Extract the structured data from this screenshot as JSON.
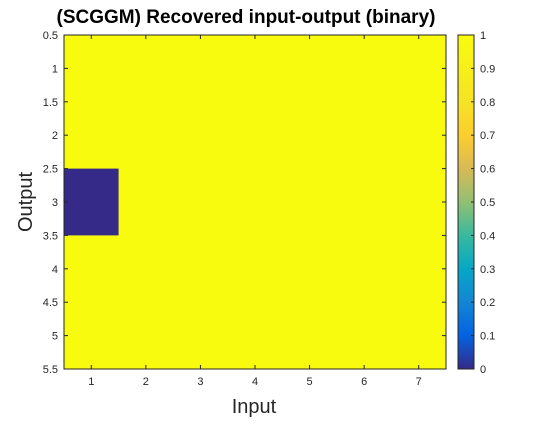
{
  "chart_data": {
    "type": "heatmap",
    "title": "(SCGGM) Recovered input-output (binary)",
    "xlabel": "Input",
    "ylabel": "Output",
    "x_categories": [
      1,
      2,
      3,
      4,
      5,
      6,
      7
    ],
    "y_categories": [
      1,
      2,
      3,
      4,
      5
    ],
    "xlim": [
      0.5,
      7.5
    ],
    "ylim": [
      0.5,
      5.5
    ],
    "y_direction": "reverse",
    "x_ticks": [
      "1",
      "2",
      "3",
      "4",
      "5",
      "6",
      "7"
    ],
    "y_ticks": [
      "0.5",
      "1",
      "1.5",
      "2",
      "2.5",
      "3",
      "3.5",
      "4",
      "4.5",
      "5",
      "5.5"
    ],
    "values": [
      [
        1,
        1,
        1,
        1,
        1,
        1,
        1
      ],
      [
        1,
        1,
        1,
        1,
        1,
        1,
        1
      ],
      [
        0,
        1,
        1,
        1,
        1,
        1,
        1
      ],
      [
        1,
        1,
        1,
        1,
        1,
        1,
        1
      ],
      [
        1,
        1,
        1,
        1,
        1,
        1,
        1
      ]
    ],
    "colorbar": {
      "range": [
        0,
        1
      ],
      "ticks": [
        "0",
        "0.1",
        "0.2",
        "0.3",
        "0.4",
        "0.5",
        "0.6",
        "0.7",
        "0.8",
        "0.9",
        "1"
      ],
      "colormap": "parula",
      "colors": {
        "low": "#352a87",
        "high": "#f9fb0e"
      }
    }
  }
}
